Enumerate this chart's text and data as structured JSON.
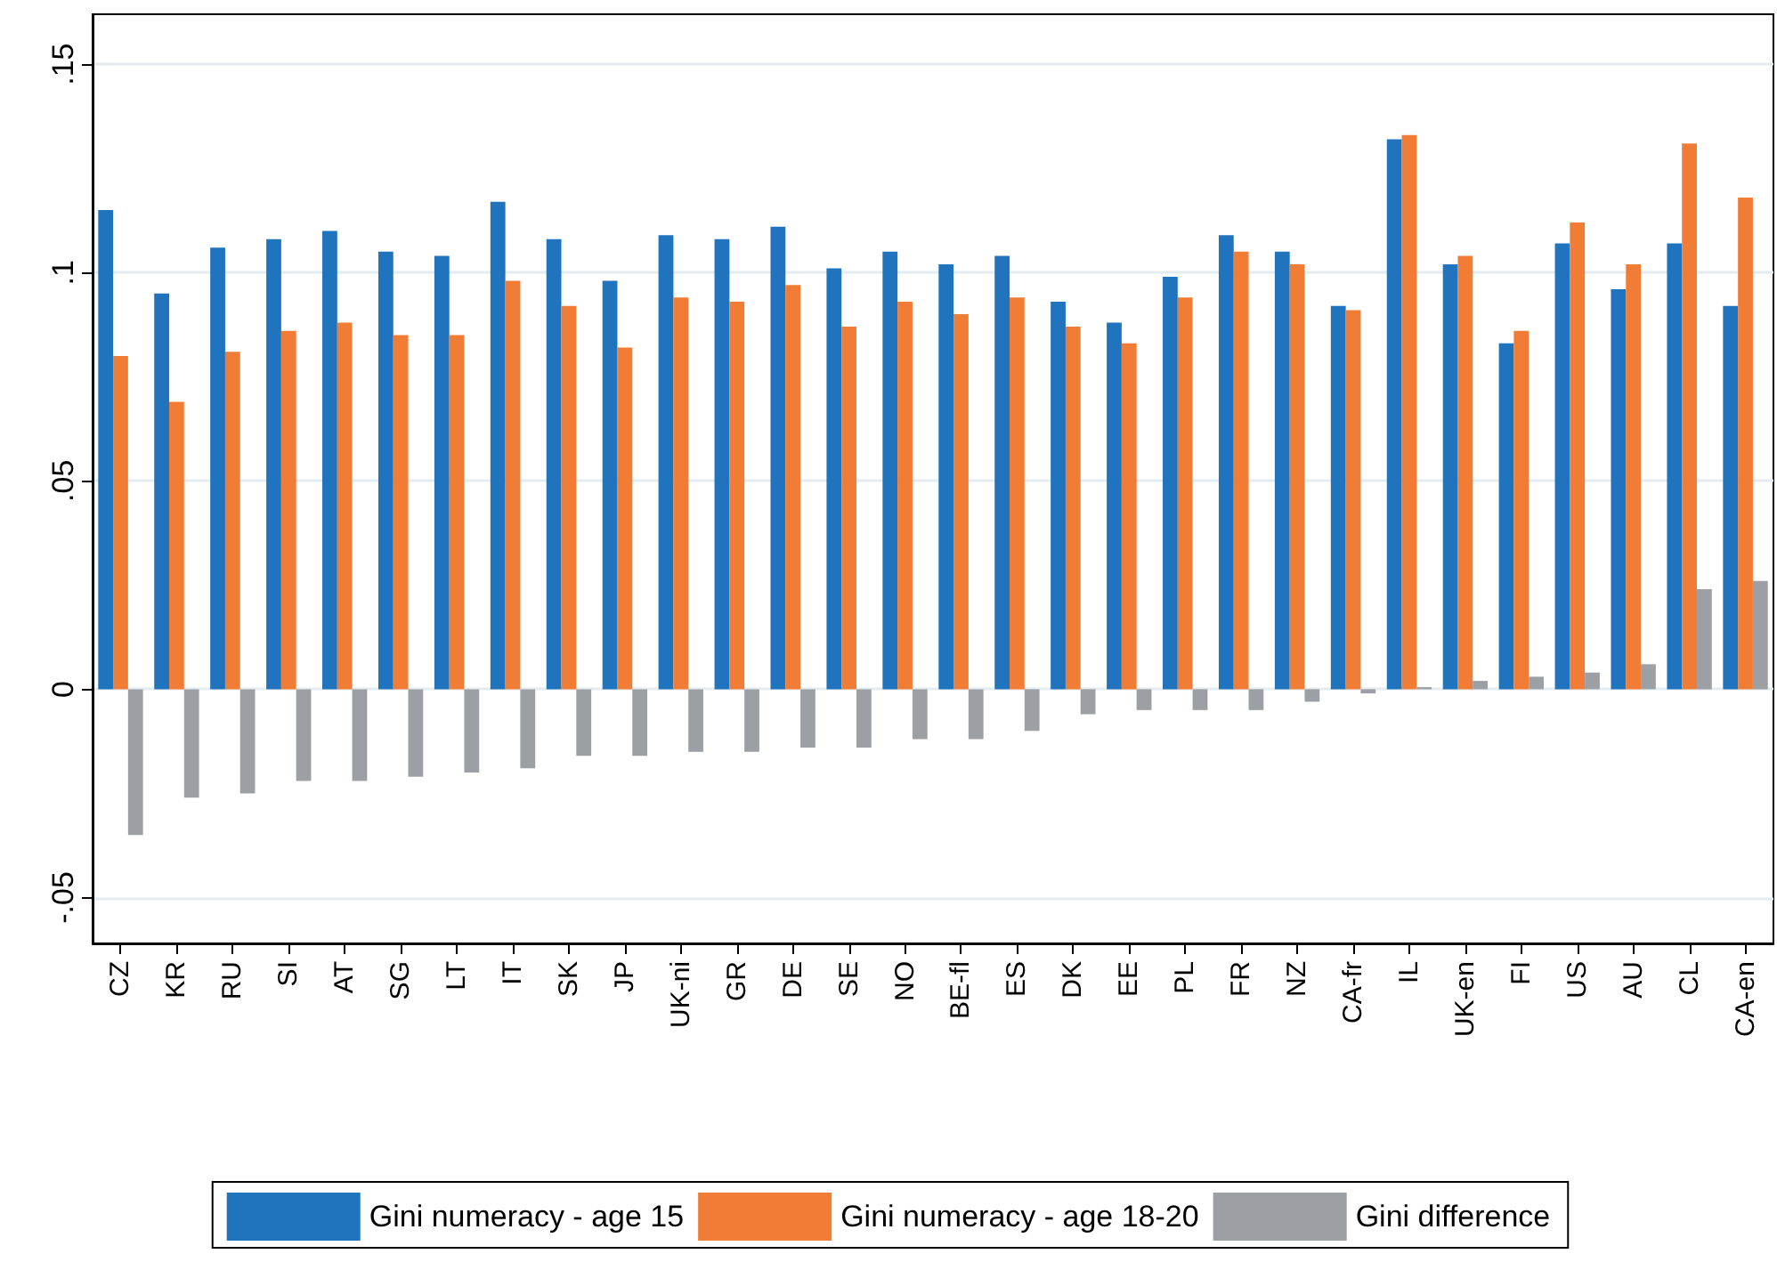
{
  "chart_data": {
    "type": "bar",
    "categories": [
      "CZ",
      "KR",
      "RU",
      "SI",
      "AT",
      "SG",
      "LT",
      "IT",
      "SK",
      "JP",
      "UK-ni",
      "GR",
      "DE",
      "SE",
      "NO",
      "BE-fl",
      "ES",
      "DK",
      "EE",
      "PL",
      "FR",
      "NZ",
      "CA-fr",
      "IL",
      "UK-en",
      "FI",
      "US",
      "AU",
      "CL",
      "CA-en"
    ],
    "series": [
      {
        "name": "Gini numeracy - age 15",
        "color": "#1f74bd",
        "values": [
          0.115,
          0.095,
          0.106,
          0.108,
          0.11,
          0.105,
          0.104,
          0.117,
          0.108,
          0.098,
          0.109,
          0.108,
          0.111,
          0.101,
          0.105,
          0.102,
          0.104,
          0.093,
          0.088,
          0.099,
          0.109,
          0.105,
          0.092,
          0.132,
          0.102,
          0.083,
          0.107,
          0.096,
          0.107,
          0.092
        ]
      },
      {
        "name": "Gini numeracy - age 18-20",
        "color": "#f17c36",
        "values": [
          0.08,
          0.069,
          0.081,
          0.086,
          0.088,
          0.085,
          0.085,
          0.098,
          0.092,
          0.082,
          0.094,
          0.093,
          0.097,
          0.087,
          0.093,
          0.09,
          0.094,
          0.087,
          0.083,
          0.094,
          0.105,
          0.102,
          0.091,
          0.133,
          0.104,
          0.086,
          0.112,
          0.102,
          0.131,
          0.118
        ]
      },
      {
        "name": "Gini difference",
        "color": "#9c9fa3",
        "values": [
          -0.035,
          -0.026,
          -0.025,
          -0.022,
          -0.022,
          -0.021,
          -0.02,
          -0.019,
          -0.016,
          -0.016,
          -0.015,
          -0.015,
          -0.014,
          -0.014,
          -0.012,
          -0.012,
          -0.01,
          -0.006,
          -0.005,
          -0.005,
          -0.005,
          -0.003,
          -0.001,
          0.0005,
          0.002,
          0.003,
          0.004,
          0.006,
          0.024,
          0.026
        ]
      }
    ],
    "ylim": [
      -0.061,
      0.162
    ],
    "yticks": [
      {
        "value": -0.05,
        "label": "-.05"
      },
      {
        "value": 0,
        "label": "0"
      },
      {
        "value": 0.05,
        "label": ".05"
      },
      {
        "value": 0.1,
        "label": ".1"
      },
      {
        "value": 0.15,
        "label": ".15"
      }
    ],
    "grid": "y",
    "legend": "bottom"
  }
}
